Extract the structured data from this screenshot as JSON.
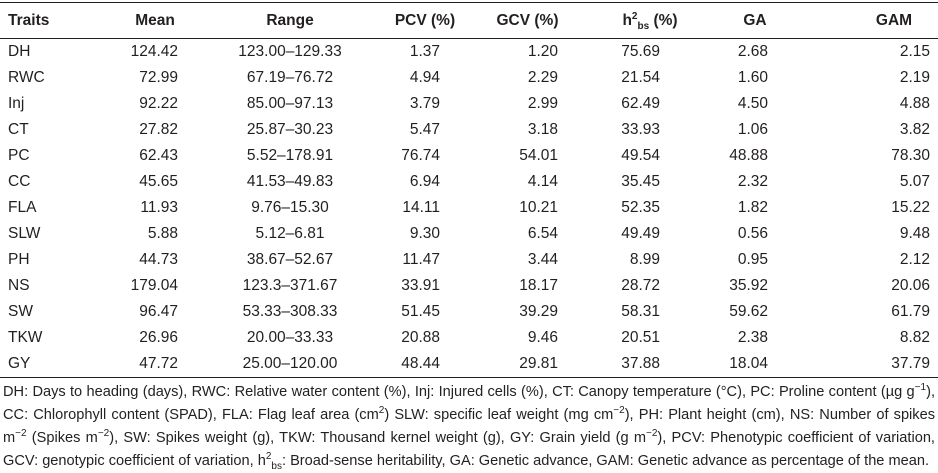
{
  "table": {
    "header": [
      "Traits",
      "Mean",
      "Range",
      "PCV (%)",
      "GCV (%)",
      {
        "base": "h",
        "sup": "2",
        "sub": "bs",
        "suffix": " (%)"
      },
      "GA",
      "GAM"
    ],
    "rows": [
      [
        "DH",
        "124.42",
        "123.00–129.33",
        "1.37",
        "1.20",
        "75.69",
        "2.68",
        "2.15"
      ],
      [
        "RWC",
        "72.99",
        "67.19–76.72",
        "4.94",
        "2.29",
        "21.54",
        "1.60",
        "2.19"
      ],
      [
        "Inj",
        "92.22",
        "85.00–97.13",
        "3.79",
        "2.99",
        "62.49",
        "4.50",
        "4.88"
      ],
      [
        "CT",
        "27.82",
        "25.87–30.23",
        "5.47",
        "3.18",
        "33.93",
        "1.06",
        "3.82"
      ],
      [
        "PC",
        "62.43",
        "5.52–178.91",
        "76.74",
        "54.01",
        "49.54",
        "48.88",
        "78.30"
      ],
      [
        "CC",
        "45.65",
        "41.53–49.83",
        "6.94",
        "4.14",
        "35.45",
        "2.32",
        "5.07"
      ],
      [
        "FLA",
        "11.93",
        "9.76–15.30",
        "14.11",
        "10.21",
        "52.35",
        "1.82",
        "15.22"
      ],
      [
        "SLW",
        "5.88",
        "5.12–6.81",
        "9.30",
        "6.54",
        "49.49",
        "0.56",
        "9.48"
      ],
      [
        "PH",
        "44.73",
        "38.67–52.67",
        "11.47",
        "3.44",
        "8.99",
        "0.95",
        "2.12"
      ],
      [
        "NS",
        "179.04",
        "123.3–371.67",
        "33.91",
        "18.17",
        "28.72",
        "35.92",
        "20.06"
      ],
      [
        "SW",
        "96.47",
        "53.33–308.33",
        "51.45",
        "39.29",
        "58.31",
        "59.62",
        "61.79"
      ],
      [
        "TKW",
        "26.96",
        "20.00–33.33",
        "20.88",
        "9.46",
        "20.51",
        "2.38",
        "8.82"
      ],
      [
        "GY",
        "47.72",
        "25.00–120.00",
        "48.44",
        "29.81",
        "37.88",
        "18.04",
        "37.79"
      ]
    ]
  },
  "footnote": [
    [
      "DH: Days to heading (days), RWC: Relative water content (%), Inj: Injured cells (%), CT: Canopy temperature (°C), PC: Proline content (µg g",
      "−1",
      "),"
    ],
    [
      "CC: Chlorophyll content (SPAD), FLA: Flag leaf area (cm",
      "2",
      ") SLW: specific leaf weight (mg cm",
      "−2",
      "), PH: Plant height (cm), NS: Number of spikes"
    ],
    [
      "m",
      "−2",
      " (Spikes m",
      "−2",
      "), SW: Spikes weight (g), TKW: Thousand kernel weight (g), GY: Grain yield (g m",
      "−2",
      "), PCV: Phenotypic coefficient of variation,"
    ],
    [
      "GCV: genotypic coefficient of variation, h",
      "2",
      "bs",
      ": Broad-sense heritability, GA: Genetic advance, GAM: Genetic advance as percentage of the mean."
    ]
  ]
}
